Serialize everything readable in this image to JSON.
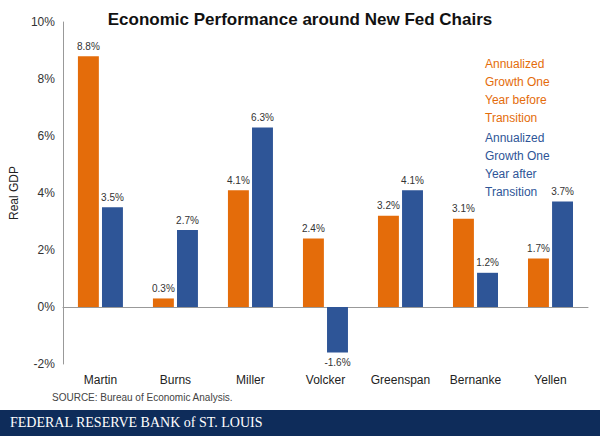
{
  "chart_data": {
    "type": "bar",
    "title": "Economic Performance around New Fed Chairs",
    "y_label": "Real GDP",
    "source": "SOURCE: Bureau of Economic Analysis.",
    "footer": "FEDERAL RESERVE BANK of ST. LOUIS",
    "categories": [
      "Martin",
      "Burns",
      "Miller",
      "Volcker",
      "Greenspan",
      "Bernanke",
      "Yellen"
    ],
    "series": [
      {
        "name": "Annualized Growth One Year before Transition",
        "color": "#E46C0A",
        "values": [
          8.8,
          0.3,
          4.1,
          2.4,
          3.2,
          3.1,
          1.7
        ],
        "value_labels": [
          "8.8%",
          "0.3%",
          "4.1%",
          "2.4%",
          "3.2%",
          "3.1%",
          "1.7%"
        ]
      },
      {
        "name": "Annualized Growth One Year after Transition",
        "color": "#2E5597",
        "values": [
          3.5,
          2.7,
          6.3,
          -1.6,
          4.1,
          1.2,
          3.7
        ],
        "value_labels": [
          "3.5%",
          "2.7%",
          "6.3%",
          "-1.6%",
          "4.1%",
          "1.2%",
          "3.7%"
        ]
      }
    ],
    "ylim": [
      -2,
      10
    ],
    "yticks": [
      {
        "value": -2,
        "label": "-2%"
      },
      {
        "value": 0,
        "label": "0%"
      },
      {
        "value": 2,
        "label": "2%"
      },
      {
        "value": 4,
        "label": "4%"
      },
      {
        "value": 6,
        "label": "6%"
      },
      {
        "value": 8,
        "label": "8%"
      },
      {
        "value": 10,
        "label": "10%"
      }
    ],
    "grid": false,
    "legend": "top-right",
    "data_labels": true
  }
}
